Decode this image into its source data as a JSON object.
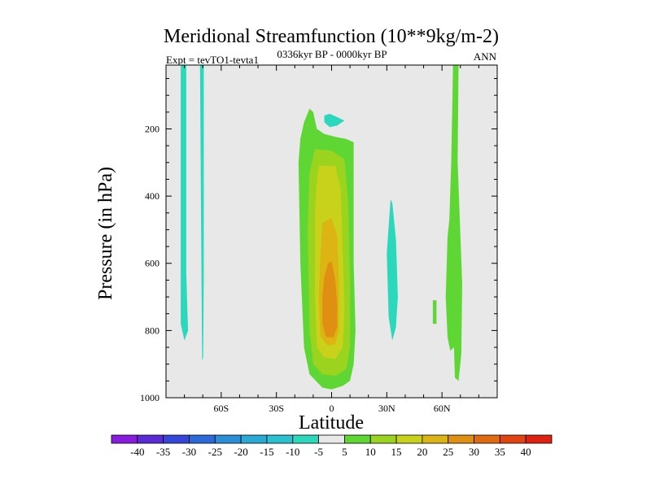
{
  "chart_data": {
    "type": "contour",
    "title": "Meridional Streamfunction (10**9kg/m-2)",
    "subtitle_left": "Expt = tevTO1-tevta1",
    "subtitle_center": "0336kyr BP - 0000kyr BP",
    "subtitle_right": "ANN",
    "xlabel": "Latitude",
    "ylabel": "Pressure (in hPa)",
    "x_ticks": [
      {
        "value": -60,
        "label": "60S"
      },
      {
        "value": -30,
        "label": "30S"
      },
      {
        "value": 0,
        "label": "0"
      },
      {
        "value": 30,
        "label": "30N"
      },
      {
        "value": 60,
        "label": "60N"
      }
    ],
    "y_ticks": [
      {
        "value": 200,
        "label": "200"
      },
      {
        "value": 400,
        "label": "400"
      },
      {
        "value": 600,
        "label": "600"
      },
      {
        "value": 800,
        "label": "800"
      },
      {
        "value": 1000,
        "label": "1000"
      }
    ],
    "xlim": [
      -90,
      90
    ],
    "ylim": [
      1000,
      10
    ],
    "background_color": "#e8e8e8",
    "colorbar": {
      "labels": [
        "-40",
        "-35",
        "-30",
        "-25",
        "-20",
        "-15",
        "-10",
        "-5",
        "5",
        "10",
        "15",
        "20",
        "25",
        "30",
        "35",
        "40"
      ],
      "colors": [
        "#8a1ce0",
        "#5a2ad8",
        "#3546d8",
        "#2b6ad8",
        "#2b8ed8",
        "#2aa9d6",
        "#2ac2d2",
        "#2bd8bc",
        "#e8e8e8",
        "#5ed634",
        "#9ad41e",
        "#c8d21a",
        "#dcb414",
        "#df8f12",
        "#e06a10",
        "#e04410",
        "#e02010"
      ]
    },
    "regions": [
      {
        "name": "cyan-band-sh-outer",
        "value": -7,
        "color": "#2bd8bc",
        "points": [
          [
            -82,
            10
          ],
          [
            -79,
            10
          ],
          [
            -79,
            630
          ],
          [
            -78,
            800
          ],
          [
            -80,
            830
          ],
          [
            -82,
            780
          ]
        ]
      },
      {
        "name": "cyan-band-sh-inner",
        "value": -7,
        "color": "#2bd8bc",
        "points": [
          [
            -71.5,
            10
          ],
          [
            -69.5,
            10
          ],
          [
            -69.5,
            650
          ],
          [
            -69.8,
            880
          ],
          [
            -70.3,
            890
          ],
          [
            -70.7,
            650
          ]
        ]
      },
      {
        "name": "cyan-blob-upper",
        "value": -7,
        "color": "#2bd8bc",
        "points": [
          [
            -4,
            160
          ],
          [
            -1,
            155
          ],
          [
            3,
            165
          ],
          [
            7,
            175
          ],
          [
            3,
            190
          ],
          [
            -1,
            195
          ],
          [
            -4,
            180
          ]
        ]
      },
      {
        "name": "cyan-strip-30n",
        "value": -7,
        "color": "#2bd8bc",
        "points": [
          [
            32,
            410
          ],
          [
            33,
            420
          ],
          [
            35,
            530
          ],
          [
            36,
            700
          ],
          [
            35,
            790
          ],
          [
            33,
            830
          ],
          [
            31,
            760
          ],
          [
            30,
            570
          ]
        ]
      },
      {
        "name": "green-cell-tropics",
        "value": 7,
        "color": "#5ed634",
        "points": [
          [
            -12,
            140
          ],
          [
            -10,
            150
          ],
          [
            -8,
            200
          ],
          [
            -4,
            215
          ],
          [
            3,
            225
          ],
          [
            8,
            230
          ],
          [
            12,
            240
          ],
          [
            12,
            600
          ],
          [
            13,
            800
          ],
          [
            12,
            900
          ],
          [
            10,
            950
          ],
          [
            6,
            965
          ],
          [
            0,
            975
          ],
          [
            -5,
            970
          ],
          [
            -12,
            930
          ],
          [
            -15,
            850
          ],
          [
            -17,
            600
          ],
          [
            -18,
            300
          ],
          [
            -17,
            230
          ],
          [
            -15,
            180
          ]
        ]
      },
      {
        "name": "green-patch-55n",
        "value": 7,
        "color": "#5ed634",
        "points": [
          [
            55,
            710
          ],
          [
            57,
            710
          ],
          [
            57,
            780
          ],
          [
            55,
            780
          ]
        ]
      },
      {
        "name": "green-band-65n",
        "value": 7,
        "color": "#5ed634",
        "points": [
          [
            66,
            10
          ],
          [
            69,
            10
          ],
          [
            68.5,
            300
          ],
          [
            71,
            660
          ],
          [
            70.5,
            870
          ],
          [
            69,
            950
          ],
          [
            67,
            940
          ],
          [
            66.5,
            850
          ],
          [
            64.5,
            860
          ],
          [
            63,
            820
          ],
          [
            62,
            700
          ],
          [
            63,
            520
          ],
          [
            64,
            470
          ],
          [
            65,
            300
          ]
        ]
      },
      {
        "name": "lime-cell-tropics",
        "value": 12,
        "color": "#9ad41e",
        "points": [
          [
            -9,
            260
          ],
          [
            0,
            265
          ],
          [
            7,
            290
          ],
          [
            9,
            420
          ],
          [
            10,
            650
          ],
          [
            10,
            850
          ],
          [
            8,
            915
          ],
          [
            2,
            935
          ],
          [
            -5,
            930
          ],
          [
            -10,
            900
          ],
          [
            -12,
            800
          ],
          [
            -13,
            500
          ],
          [
            -12,
            330
          ]
        ]
      },
      {
        "name": "yellow-cell-tropics",
        "value": 17,
        "color": "#c8d21a",
        "points": [
          [
            -7,
            310
          ],
          [
            2,
            310
          ],
          [
            5,
            380
          ],
          [
            6,
            560
          ],
          [
            7,
            740
          ],
          [
            6,
            850
          ],
          [
            2,
            885
          ],
          [
            -4,
            880
          ],
          [
            -8,
            850
          ],
          [
            -9,
            700
          ],
          [
            -9,
            450
          ],
          [
            -8,
            360
          ]
        ]
      },
      {
        "name": "gold-cell-tropics",
        "value": 22,
        "color": "#dcb414",
        "points": [
          [
            -5,
            480
          ],
          [
            0,
            465
          ],
          [
            3,
            520
          ],
          [
            4,
            650
          ],
          [
            4,
            800
          ],
          [
            2,
            840
          ],
          [
            -2,
            845
          ],
          [
            -6,
            820
          ],
          [
            -7,
            700
          ],
          [
            -6,
            570
          ]
        ]
      },
      {
        "name": "orange-cell-core",
        "value": 27,
        "color": "#df8f12",
        "points": [
          [
            -2,
            600
          ],
          [
            0,
            595
          ],
          [
            2,
            650
          ],
          [
            3,
            720
          ],
          [
            3,
            790
          ],
          [
            1,
            820
          ],
          [
            -3,
            820
          ],
          [
            -5,
            780
          ],
          [
            -5,
            700
          ],
          [
            -4,
            640
          ]
        ]
      }
    ]
  }
}
